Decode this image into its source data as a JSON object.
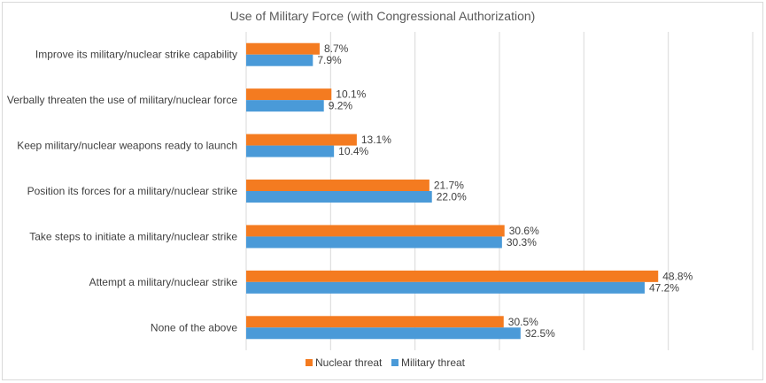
{
  "chart_data": {
    "type": "bar",
    "orientation": "horizontal",
    "title": "Use of Military Force (with Congressional Authorization)",
    "xlabel": "",
    "ylabel": "",
    "xlim": [
      0,
      60
    ],
    "grid": true,
    "legend_position": "bottom",
    "value_suffix": "%",
    "categories": [
      "Improve its military/nuclear strike capability",
      "Verbally threaten the use of military/nuclear force",
      "Keep military/nuclear weapons ready to launch",
      "Position its forces for a military/nuclear strike",
      "Take steps to initiate a military/nuclear strike",
      "Attempt a military/nuclear strike",
      "None of the above"
    ],
    "series": [
      {
        "name": "Nuclear threat",
        "color": "#f47b20",
        "values": [
          8.7,
          10.1,
          13.1,
          21.7,
          30.6,
          48.8,
          30.5
        ],
        "labels": [
          "8.7%",
          "10.1%",
          "13.1%",
          "21.7%",
          "30.6%",
          "48.8%",
          "30.5%"
        ]
      },
      {
        "name": "Military threat",
        "color": "#4a9ad8",
        "values": [
          7.9,
          9.2,
          10.4,
          22.0,
          30.3,
          47.2,
          32.5
        ],
        "labels": [
          "7.9%",
          "9.2%",
          "10.4%",
          "22.0%",
          "30.3%",
          "47.2%",
          "32.5%"
        ]
      }
    ]
  }
}
